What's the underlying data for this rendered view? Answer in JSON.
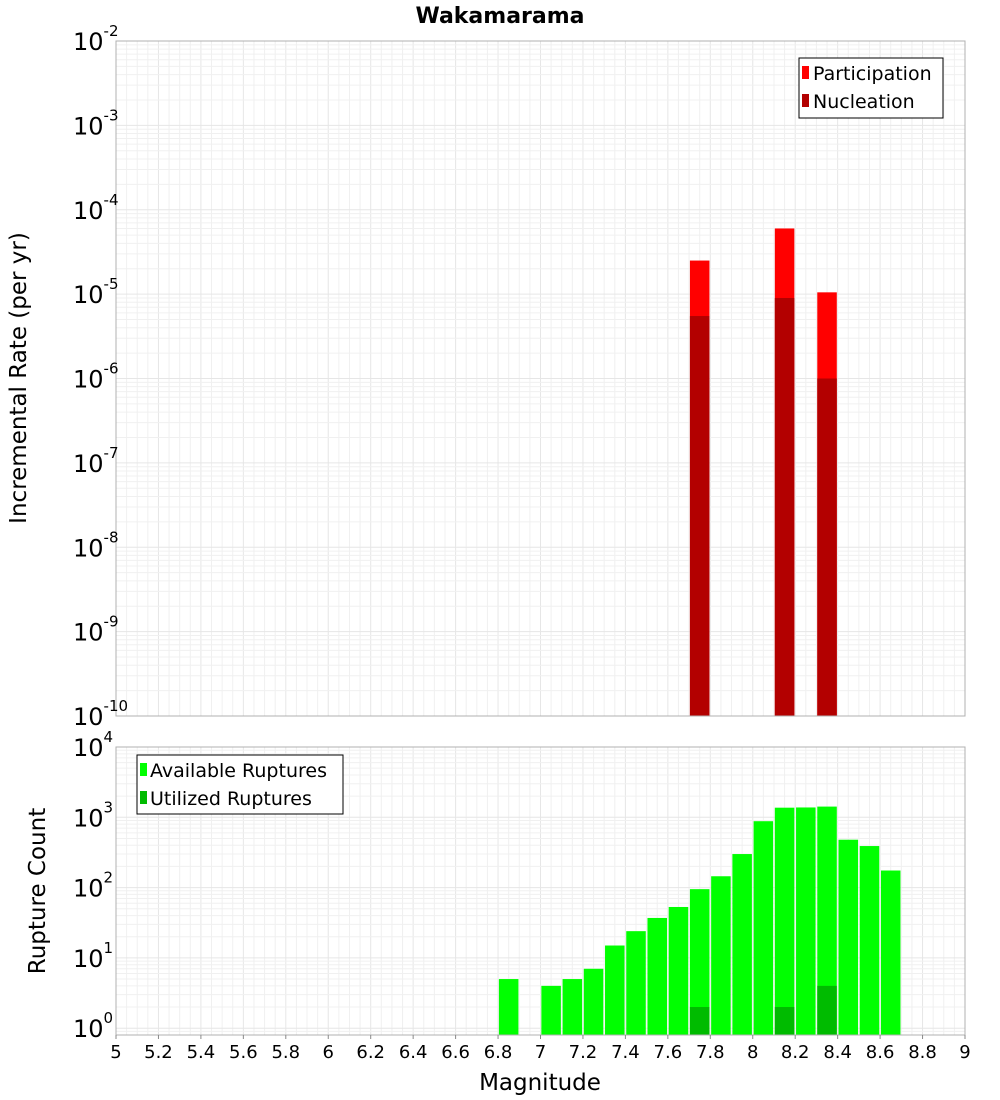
{
  "title": "Wakamarama",
  "xlabel": "Magnitude",
  "x_ticks": [
    "5",
    "5.2",
    "5.4",
    "5.6",
    "5.8",
    "6",
    "6.2",
    "6.4",
    "6.6",
    "6.8",
    "7",
    "7.2",
    "7.4",
    "7.6",
    "7.8",
    "8",
    "8.2",
    "8.4",
    "8.6",
    "8.8",
    "9"
  ],
  "chart_data": [
    {
      "type": "bar",
      "ylabel": "Incremental Rate (per yr)",
      "yscale": "log",
      "xlim": [
        5,
        9
      ],
      "ylim": [
        1e-10,
        0.01
      ],
      "y_tick_exponents": [
        "-10",
        "-9",
        "-8",
        "-7",
        "-6",
        "-5",
        "-4",
        "-3",
        "-2"
      ],
      "grid": true,
      "legend_position": "top-right",
      "series": [
        {
          "name": "Participation",
          "color": "#ff0000",
          "x": [
            7.75,
            8.15,
            8.35
          ],
          "values": [
            2.5e-05,
            6e-05,
            1.05e-05
          ]
        },
        {
          "name": "Nucleation",
          "color": "#b30000",
          "x": [
            7.75,
            8.15,
            8.35
          ],
          "values": [
            5.5e-06,
            9e-06,
            1e-06
          ]
        }
      ]
    },
    {
      "type": "bar",
      "ylabel": "Rupture Count",
      "yscale": "log",
      "xlim": [
        5,
        9
      ],
      "ylim": [
        0.8,
        10000
      ],
      "y_tick_exponents": [
        "0",
        "1",
        "2",
        "3",
        "4"
      ],
      "grid": true,
      "legend_position": "top-left",
      "series": [
        {
          "name": "Available Ruptures",
          "color": "#00ff00",
          "x": [
            6.85,
            7.05,
            7.15,
            7.25,
            7.35,
            7.45,
            7.55,
            7.65,
            7.75,
            7.85,
            7.95,
            8.05,
            8.15,
            8.25,
            8.35,
            8.45,
            8.55,
            8.65
          ],
          "values": [
            5,
            4,
            5,
            7,
            15,
            24,
            37,
            53,
            95,
            145,
            300,
            880,
            1370,
            1380,
            1420,
            480,
            390,
            175
          ]
        },
        {
          "name": "Utilized Ruptures",
          "color": "#00bb00",
          "x": [
            7.75,
            8.15,
            8.35
          ],
          "values": [
            2,
            2,
            4
          ]
        }
      ]
    }
  ]
}
